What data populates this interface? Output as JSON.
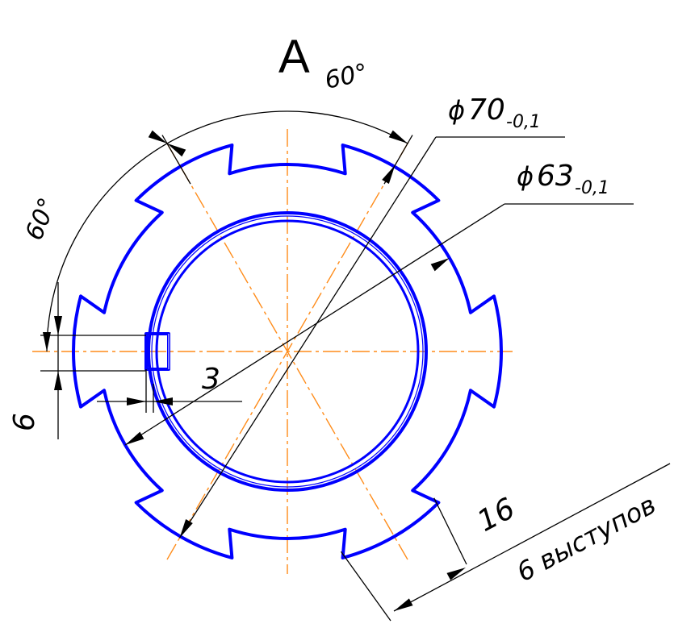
{
  "view_label": "А",
  "dimensions": {
    "angle_top": "60°",
    "angle_left": "60°",
    "dia_outer_symbol": "ϕ",
    "dia_outer_value": "70",
    "dia_outer_tol": "-0,1",
    "dia_inner_symbol": "ϕ",
    "dia_inner_value": "63",
    "dia_inner_tol": "-0,1",
    "slot_depth": "3",
    "slot_width": "6",
    "lug_width": "16",
    "lug_note": "6 выступов"
  },
  "colors": {
    "outline": "#0000ff",
    "centerline": "#ff8c1a",
    "dimension": "#000000"
  }
}
